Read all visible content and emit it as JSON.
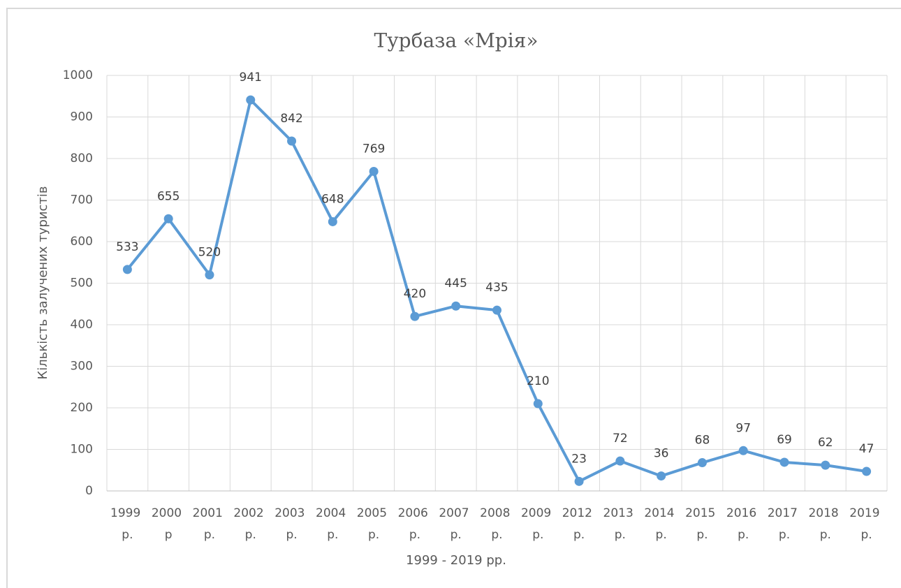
{
  "chart_data": {
    "type": "line",
    "title": "Турбаза «Мрія»",
    "x_label": "1999 - 2019 рр.",
    "y_label": "Кількість залучених туристів",
    "categories": [
      "1999 р.",
      "2000 р",
      "2001 р.",
      "2002 р.",
      "2003 р.",
      "2004 р.",
      "2005 р.",
      "2006 р.",
      "2007 р.",
      "2008 р.",
      "2009 р.",
      "2012 р.",
      "2013 р.",
      "2014 р.",
      "2015 р.",
      "2016 р.",
      "2017 р.",
      "2018 р.",
      "2019 р."
    ],
    "series": [
      {
        "name": "Кількість залучених туристів",
        "color": "#5b9bd5",
        "values": [
          533,
          655,
          520,
          941,
          842,
          648,
          769,
          420,
          445,
          435,
          210,
          23,
          72,
          36,
          68,
          97,
          69,
          62,
          47
        ]
      }
    ],
    "ylim": [
      0,
      1000
    ],
    "yticks": [
      0,
      100,
      200,
      300,
      400,
      500,
      600,
      700,
      800,
      900,
      1000
    ],
    "grid": true
  }
}
